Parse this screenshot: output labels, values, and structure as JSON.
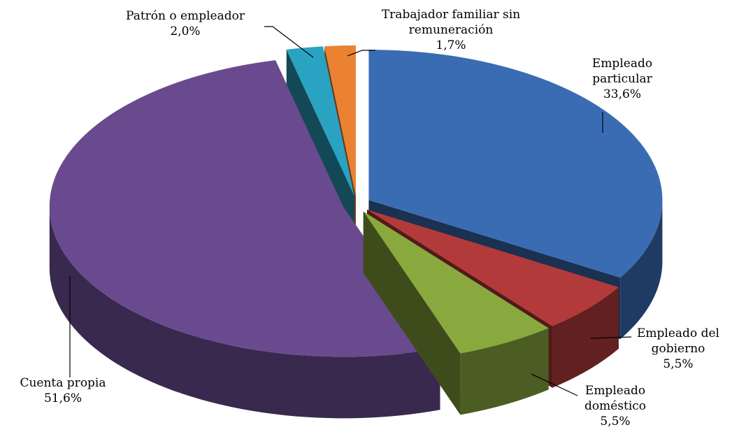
{
  "chart_data": {
    "type": "pie",
    "categories": [
      "Empleado particular",
      "Empleado del gobierno",
      "Empleado doméstico",
      "Cuenta propia",
      "Patrón o empleador",
      "Trabajador familiar sin remuneración"
    ],
    "values": [
      33.6,
      5.5,
      5.5,
      51.6,
      2.0,
      1.7
    ],
    "value_labels": [
      "33,6%",
      "5,5%",
      "5,5%",
      "51,6%",
      "2,0%",
      "1,7%"
    ],
    "colors": [
      "#3a6cb4",
      "#b33a3a",
      "#89a93e",
      "#6a4a8e",
      "#2aa2c2",
      "#ea8232"
    ]
  }
}
